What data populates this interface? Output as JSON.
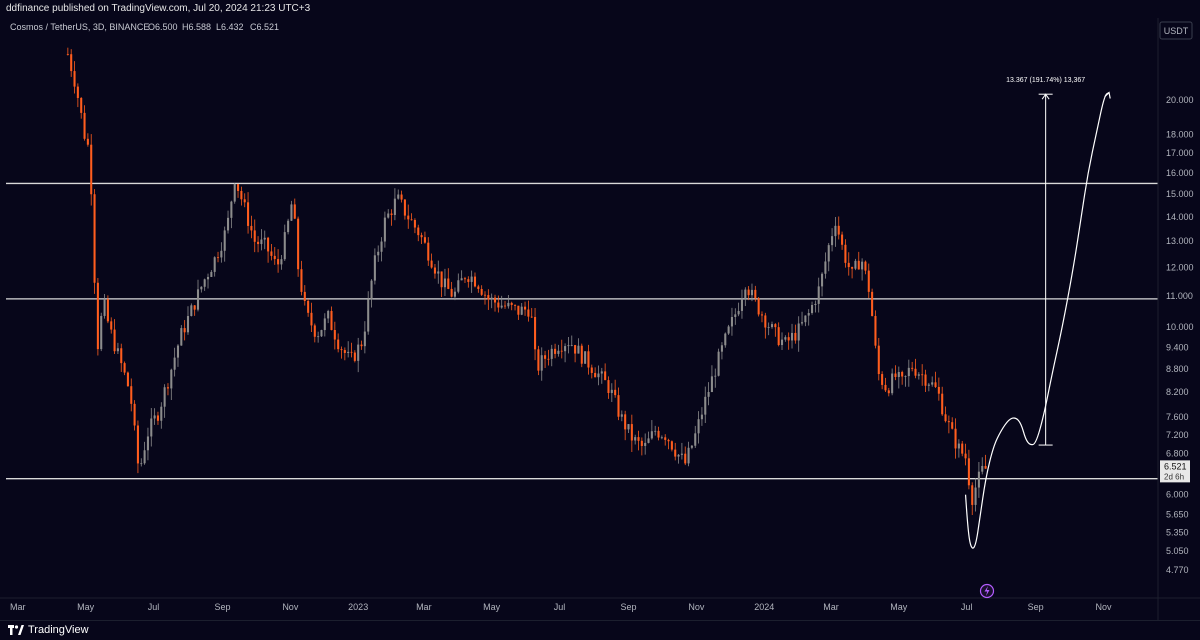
{
  "topbar": {
    "text": "ddfinance published on TradingView.com, Jul 20, 2024 21:23 UTC+3"
  },
  "footer": {
    "brand": "TradingView"
  },
  "colors": {
    "background": "#07061a",
    "up": "#8c8c8c",
    "down": "#ff5d1e",
    "level": "#d9d9d9",
    "drawing": "#ffffff",
    "last_price_bg": "#e8e8e8"
  },
  "icons": {
    "replay": "lightning-bolt-icon"
  },
  "chart_data": {
    "type": "candlestick",
    "symbol_line": "Cosmos / TetherUS, 3D, BINANCE",
    "ohlc_legend": {
      "o": "O6.500",
      "h": "H6.588",
      "l": "L6.432",
      "c": "C6.521"
    },
    "currency": "USDT",
    "scale": "log",
    "ylim": [
      4.5,
      23.5
    ],
    "y_ticks": [
      "20.000",
      "18.000",
      "17.000",
      "16.000",
      "15.000",
      "14.000",
      "13.000",
      "12.000",
      "11.000",
      "10.000",
      "9.400",
      "8.800",
      "8.200",
      "7.600",
      "7.200",
      "6.800",
      "6.000",
      "5.650",
      "5.350",
      "5.050",
      "4.770"
    ],
    "x_ticks": [
      "Mar",
      "May",
      "Jul",
      "Sep",
      "Nov",
      "2023",
      "Mar",
      "May",
      "Jul",
      "Sep",
      "Nov",
      "2024",
      "Mar",
      "May",
      "Jul",
      "Sep",
      "Nov"
    ],
    "x_range": [
      "2022-02-13",
      "2024-12-20"
    ],
    "last_price": "6.521",
    "countdown": "2d 6h",
    "horizontal_levels": [
      15.5,
      10.9,
      6.3
    ],
    "price_range_tool": {
      "label": "13.367 (191.74%) 13,367",
      "from": 6.98,
      "to": 20.35,
      "date": "2024-09-10"
    },
    "projection_path": [
      [
        "2024-06-30",
        6.0
      ],
      [
        "2024-07-02",
        5.4
      ],
      [
        "2024-07-05",
        5.08
      ],
      [
        "2024-07-09",
        5.12
      ],
      [
        "2024-07-13",
        5.6
      ],
      [
        "2024-07-18",
        6.3
      ],
      [
        "2024-07-25",
        6.95
      ],
      [
        "2024-08-01",
        7.3
      ],
      [
        "2024-08-08",
        7.55
      ],
      [
        "2024-08-14",
        7.6
      ],
      [
        "2024-08-19",
        7.45
      ],
      [
        "2024-08-23",
        7.1
      ],
      [
        "2024-08-27",
        6.98
      ],
      [
        "2024-09-01",
        7.0
      ],
      [
        "2024-09-08",
        7.6
      ],
      [
        "2024-09-16",
        8.7
      ],
      [
        "2024-09-25",
        10.0
      ],
      [
        "2024-10-05",
        12.0
      ],
      [
        "2024-10-12",
        14.0
      ],
      [
        "2024-10-18",
        16.0
      ],
      [
        "2024-10-26",
        18.2
      ],
      [
        "2024-11-02",
        20.3
      ],
      [
        "2024-11-06",
        20.45
      ]
    ],
    "close_path": [
      [
        "2022-04-15",
        23.0
      ],
      [
        "2022-04-22",
        21.0
      ],
      [
        "2022-04-30",
        18.0
      ],
      [
        "2022-05-05",
        17.0
      ],
      [
        "2022-05-08",
        12.5
      ],
      [
        "2022-05-12",
        9.5
      ],
      [
        "2022-05-17",
        10.8
      ],
      [
        "2022-05-22",
        10.0
      ],
      [
        "2022-05-30",
        9.2
      ],
      [
        "2022-06-10",
        8.2
      ],
      [
        "2022-06-18",
        6.4
      ],
      [
        "2022-06-25",
        7.2
      ],
      [
        "2022-07-05",
        7.7
      ],
      [
        "2022-07-15",
        8.6
      ],
      [
        "2022-07-25",
        9.7
      ],
      [
        "2022-08-05",
        10.6
      ],
      [
        "2022-08-15",
        11.5
      ],
      [
        "2022-08-25",
        12.3
      ],
      [
        "2022-09-05",
        13.5
      ],
      [
        "2022-09-12",
        15.8
      ],
      [
        "2022-09-20",
        14.5
      ],
      [
        "2022-09-30",
        13.0
      ],
      [
        "2022-10-10",
        12.8
      ],
      [
        "2022-10-20",
        12.0
      ],
      [
        "2022-10-28",
        13.2
      ],
      [
        "2022-11-03",
        14.8
      ],
      [
        "2022-11-08",
        12.0
      ],
      [
        "2022-11-15",
        10.4
      ],
      [
        "2022-11-25",
        9.8
      ],
      [
        "2022-12-05",
        10.3
      ],
      [
        "2022-12-15",
        9.5
      ],
      [
        "2022-12-25",
        9.0
      ],
      [
        "2023-01-05",
        9.6
      ],
      [
        "2023-01-15",
        12.0
      ],
      [
        "2023-01-25",
        13.8
      ],
      [
        "2023-02-05",
        14.8
      ],
      [
        "2023-02-15",
        14.0
      ],
      [
        "2023-02-25",
        13.3
      ],
      [
        "2023-03-08",
        12.3
      ],
      [
        "2023-03-18",
        11.4
      ],
      [
        "2023-03-28",
        11.0
      ],
      [
        "2023-04-08",
        11.8
      ],
      [
        "2023-04-18",
        11.5
      ],
      [
        "2023-04-28",
        10.9
      ],
      [
        "2023-05-10",
        10.7
      ],
      [
        "2023-05-25",
        10.5
      ],
      [
        "2023-06-05",
        10.6
      ],
      [
        "2023-06-10",
        8.8
      ],
      [
        "2023-06-20",
        9.2
      ],
      [
        "2023-06-30",
        9.5
      ],
      [
        "2023-07-10",
        9.6
      ],
      [
        "2023-07-20",
        9.2
      ],
      [
        "2023-08-01",
        8.8
      ],
      [
        "2023-08-15",
        8.3
      ],
      [
        "2023-08-25",
        7.6
      ],
      [
        "2023-09-05",
        7.1
      ],
      [
        "2023-09-15",
        6.9
      ],
      [
        "2023-09-25",
        7.3
      ],
      [
        "2023-10-05",
        7.2
      ],
      [
        "2023-10-15",
        6.8
      ],
      [
        "2023-10-22",
        6.6
      ],
      [
        "2023-10-30",
        7.1
      ],
      [
        "2023-11-08",
        7.9
      ],
      [
        "2023-11-18",
        8.8
      ],
      [
        "2023-11-28",
        9.7
      ],
      [
        "2023-12-08",
        10.6
      ],
      [
        "2023-12-15",
        11.5
      ],
      [
        "2023-12-22",
        10.9
      ],
      [
        "2024-01-01",
        10.3
      ],
      [
        "2024-01-10",
        9.8
      ],
      [
        "2024-01-20",
        9.5
      ],
      [
        "2024-02-01",
        9.9
      ],
      [
        "2024-02-10",
        10.4
      ],
      [
        "2024-02-20",
        11.3
      ],
      [
        "2024-02-28",
        12.8
      ],
      [
        "2024-03-05",
        13.9
      ],
      [
        "2024-03-12",
        12.6
      ],
      [
        "2024-03-20",
        11.7
      ],
      [
        "2024-03-28",
        12.4
      ],
      [
        "2024-04-05",
        11.1
      ],
      [
        "2024-04-12",
        8.7
      ],
      [
        "2024-04-20",
        8.3
      ],
      [
        "2024-04-28",
        8.6
      ],
      [
        "2024-05-05",
        8.4
      ],
      [
        "2024-05-12",
        8.9
      ],
      [
        "2024-05-20",
        8.7
      ],
      [
        "2024-05-28",
        8.5
      ],
      [
        "2024-06-05",
        8.2
      ],
      [
        "2024-06-12",
        7.6
      ],
      [
        "2024-06-18",
        7.2
      ],
      [
        "2024-06-24",
        6.9
      ],
      [
        "2024-07-01",
        6.7
      ],
      [
        "2024-07-05",
        5.9
      ],
      [
        "2024-07-10",
        6.2
      ],
      [
        "2024-07-15",
        6.45
      ],
      [
        "2024-07-20",
        6.52
      ]
    ]
  }
}
